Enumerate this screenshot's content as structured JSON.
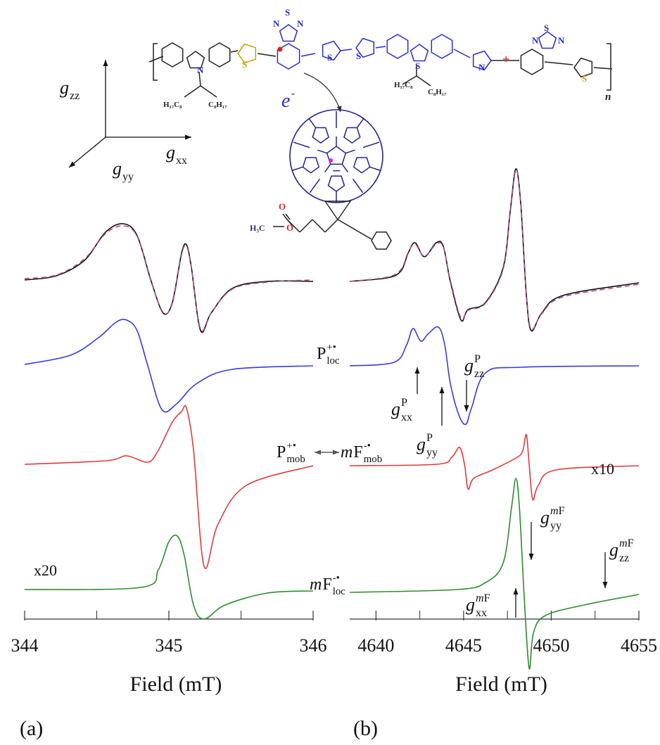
{
  "molecule": {
    "atoms": [
      "S",
      "N",
      "N",
      "S",
      "S",
      "N",
      "S",
      "S",
      "N",
      "S",
      "N",
      "N",
      "S",
      "O",
      "O"
    ],
    "substituents": [
      "H₁₇C₈",
      "C₈H₁₇",
      "H₁₇C₈",
      "C₈H₁₇"
    ],
    "methyl": "H₃C",
    "repeat": "n",
    "charge": "+",
    "anion": "−",
    "electron": {
      "italic": "e",
      "sup": "-"
    }
  },
  "g_axes": [
    {
      "italic": "g",
      "sub": "zz"
    },
    {
      "italic": "g",
      "sub": "xx"
    },
    {
      "italic": "g",
      "sub": "yy"
    }
  ],
  "annotations": [
    {
      "base": "P",
      "sup": "+•",
      "sub": "loc"
    },
    {
      "base": "P",
      "sup": "+•",
      "sub": "mob"
    },
    {
      "italic": "m",
      "base": "F",
      "sup": "-•",
      "sub": "mob"
    },
    {
      "base": "x20"
    },
    {
      "italic": "m",
      "base": "F",
      "sup": "-•",
      "sub": "loc"
    },
    {
      "italic": "g",
      "sup": "P",
      "sub": "xx"
    },
    {
      "italic": "g",
      "sup": "P",
      "sub": "yy"
    },
    {
      "italic": "g",
      "sup": "P",
      "sub": "zz"
    },
    {
      "base": "x10"
    },
    {
      "italic": "g",
      "sup_italic": "m",
      "sup": "F",
      "sub": "yy"
    },
    {
      "italic": "g",
      "sup_italic": "m",
      "sup": "F",
      "sub": "zz"
    },
    {
      "italic": "g",
      "sup_italic": "m",
      "sup": "F",
      "sub": "xx"
    }
  ],
  "chart_data": [
    {
      "type": "line",
      "panel_label": "(a)",
      "x_label": "Field (mT)",
      "xlim": [
        344,
        346
      ],
      "xticks": [
        344,
        345,
        346
      ],
      "minor_xticks": [
        344.5,
        345.5
      ],
      "series": [
        {
          "color": "#111111",
          "dashed": false,
          "x": [
            344.0,
            344.22,
            344.415,
            344.561,
            344.683,
            344.78,
            344.878,
            344.961,
            345.024,
            345.088,
            345.122,
            345.156,
            345.22,
            345.293,
            345.439,
            345.683,
            346.0
          ],
          "values": [
            0,
            0.06,
            0.28,
            0.68,
            0.8,
            0.63,
            -0.02,
            -0.47,
            -0.32,
            0.38,
            0.5,
            0.18,
            -0.72,
            -0.47,
            -0.12,
            -0.02,
            -0.02
          ]
        },
        {
          "color": "#b04a8a",
          "dashed": true,
          "x": [
            344.0,
            344.22,
            344.415,
            344.561,
            344.683,
            344.78,
            344.878,
            344.961,
            345.024,
            345.088,
            345.122,
            345.156,
            345.22,
            345.293,
            345.439,
            345.683,
            346.0
          ],
          "values": [
            0.02,
            0.07,
            0.3,
            0.66,
            0.77,
            0.62,
            -0.03,
            -0.46,
            -0.33,
            0.36,
            0.48,
            0.17,
            -0.7,
            -0.47,
            -0.13,
            -0.03,
            0
          ]
        },
        {
          "color": "#3a3ae0",
          "dashed": false,
          "x": [
            344.0,
            344.317,
            344.512,
            344.634,
            344.707,
            344.78,
            344.854,
            344.951,
            345.049,
            345.195,
            345.439,
            346.0
          ],
          "values": [
            0,
            0.13,
            0.38,
            0.6,
            0.63,
            0.48,
            -0.02,
            -0.64,
            -0.57,
            -0.27,
            -0.07,
            -0.02
          ]
        },
        {
          "color": "#e23a3a",
          "dashed": false,
          "x": [
            344.0,
            344.561,
            344.707,
            344.854,
            344.927,
            345.024,
            345.088,
            345.122,
            345.171,
            345.244,
            345.341,
            345.537,
            346.0
          ],
          "values": [
            0,
            0.05,
            0.12,
            0.03,
            0.2,
            0.6,
            0.75,
            0.8,
            0.2,
            -1.45,
            -0.85,
            -0.3,
            -0.02
          ]
        },
        {
          "color": "#2e8b2e",
          "dashed": false,
          "x": [
            344.0,
            344.805,
            344.927,
            345.0,
            345.059,
            345.107,
            345.171,
            345.244,
            345.39,
            345.683,
            346.0
          ],
          "values": [
            0,
            0.03,
            0.28,
            0.68,
            0.76,
            0.48,
            -0.22,
            -0.42,
            -0.22,
            -0.05,
            -0.02
          ]
        }
      ]
    },
    {
      "type": "line",
      "panel_label": "(b)",
      "x_label": "Field (mT)",
      "xlim": [
        4638.5,
        4655
      ],
      "xticks": [
        4640,
        4645,
        4650,
        4655
      ],
      "minor_xticks": [
        4642.5,
        4647.5,
        4652.5
      ],
      "series": [
        {
          "color": "#111111",
          "dashed": false,
          "x": [
            4638.5,
            4640.63,
            4641.43,
            4641.83,
            4642.23,
            4642.76,
            4643.44,
            4643.84,
            4644.24,
            4644.85,
            4645.25,
            4646.25,
            4647.26,
            4647.66,
            4647.98,
            4648.26,
            4648.58,
            4648.86,
            4649.46,
            4650.67,
            4655.0
          ],
          "values": [
            0,
            0.05,
            0.15,
            0.4,
            0.55,
            0.35,
            0.55,
            0.5,
            0,
            -0.55,
            -0.4,
            -0.3,
            0.2,
            1.0,
            1.6,
            1.1,
            -0.2,
            -0.7,
            -0.45,
            -0.2,
            -0.02
          ]
        },
        {
          "color": "#b04a8a",
          "dashed": true,
          "x": [
            4638.5,
            4640.63,
            4641.43,
            4641.83,
            4642.23,
            4642.76,
            4643.44,
            4643.84,
            4644.24,
            4644.85,
            4645.25,
            4646.25,
            4647.26,
            4647.66,
            4647.98,
            4648.26,
            4648.58,
            4648.86,
            4649.46,
            4650.67,
            4655.0
          ],
          "values": [
            0,
            0.06,
            0.17,
            0.41,
            0.53,
            0.36,
            0.53,
            0.49,
            0.02,
            -0.52,
            -0.41,
            -0.31,
            0.18,
            0.98,
            1.58,
            1.12,
            -0.18,
            -0.68,
            -0.46,
            -0.22,
            -0.04
          ]
        },
        {
          "color": "#3a3ae0",
          "dashed": false,
          "x": [
            4638.5,
            4641.03,
            4641.75,
            4642.11,
            4642.56,
            4642.96,
            4643.56,
            4643.92,
            4644.24,
            4644.73,
            4645.13,
            4645.45,
            4646.25,
            4648.26,
            4655.0
          ],
          "values": [
            0,
            0.05,
            0.3,
            0.53,
            0.35,
            0.45,
            0.55,
            0.3,
            -0.25,
            -0.7,
            -0.83,
            -0.6,
            -0.1,
            -0.02,
            0
          ]
        },
        {
          "color": "#e23a3a",
          "dashed": false,
          "x": [
            4638.5,
            4643.44,
            4644.32,
            4644.77,
            4645.05,
            4645.25,
            4645.57,
            4646.65,
            4648.06,
            4648.38,
            4648.58,
            4648.74,
            4648.94,
            4649.26,
            4650.27,
            4655.0
          ],
          "values": [
            0,
            0.02,
            0.12,
            0.26,
            0.02,
            -0.33,
            -0.18,
            -0.06,
            0.12,
            0.22,
            0.44,
            0.02,
            -0.48,
            -0.28,
            -0.06,
            0
          ]
        },
        {
          "color": "#2e8b2e",
          "dashed": false,
          "x": [
            4638.5,
            4644.64,
            4646.25,
            4647.26,
            4647.74,
            4647.98,
            4648.18,
            4648.46,
            4648.74,
            4648.98,
            4649.66,
            4651.87,
            4655.0
          ],
          "values": [
            0,
            0.04,
            0.14,
            0.42,
            1.22,
            1.62,
            1.22,
            -0.08,
            -1.08,
            -0.58,
            -0.33,
            -0.18,
            -0.03
          ]
        }
      ]
    }
  ]
}
